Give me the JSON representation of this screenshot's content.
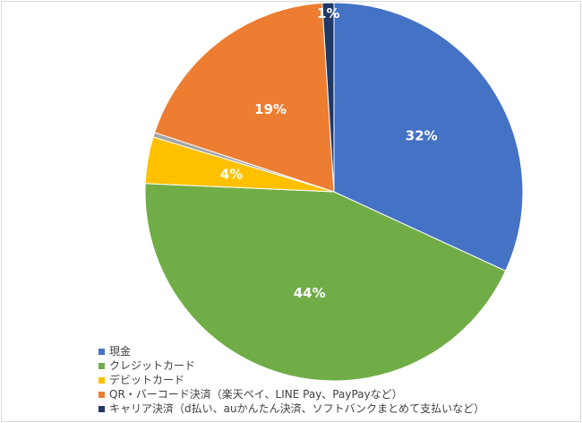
{
  "chart_data": {
    "type": "pie",
    "title": "",
    "slices": [
      {
        "label": "現金",
        "value": 32,
        "display": "32%",
        "color": "#4472C4"
      },
      {
        "label": "クレジットカード",
        "value": 44,
        "display": "44%",
        "color": "#70AD47"
      },
      {
        "label": "デビットカード",
        "value": 4,
        "display": "4%",
        "color": "#FFC000"
      },
      {
        "label": "",
        "value": 0.4,
        "display": "",
        "color": "#A5A5A5"
      },
      {
        "label": "QR・バーコード決済（楽天ペイ、LINE Pay、PayPayなど）",
        "value": 19,
        "display": "19%",
        "color": "#ED7D31"
      },
      {
        "label": "キャリア決済（d払い、auかんたん決済、ソフトバンクまとめて支払いなど）",
        "value": 1,
        "display": "1%",
        "color": "#203864"
      }
    ],
    "legend": [
      {
        "label": "現金",
        "color": "#4472C4"
      },
      {
        "label": "クレジットカード",
        "color": "#70AD47"
      },
      {
        "label": "デビットカード",
        "color": "#FFC000"
      },
      {
        "label": "QR・バーコード決済（楽天ペイ、LINE Pay、PayPayなど）",
        "color": "#ED7D31"
      },
      {
        "label": "キャリア決済（d払い、auかんたん決済、ソフトバンクまとめて支払いなど）",
        "color": "#203864"
      }
    ],
    "legend_position": "bottom-left"
  }
}
